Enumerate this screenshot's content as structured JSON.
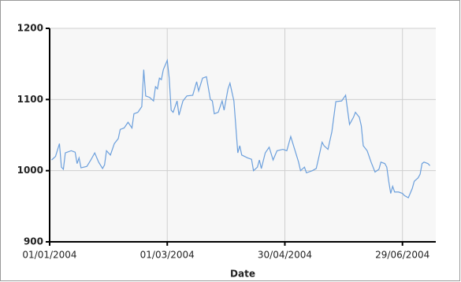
{
  "chart_data": {
    "type": "line",
    "x_label": "Date",
    "x": [
      "2004-01-02",
      "2004-01-04",
      "2004-01-06",
      "2004-01-07",
      "2004-01-08",
      "2004-01-09",
      "2004-01-12",
      "2004-01-14",
      "2004-01-15",
      "2004-01-16",
      "2004-01-17",
      "2004-01-20",
      "2004-01-22",
      "2004-01-24",
      "2004-01-26",
      "2004-01-28",
      "2004-01-29",
      "2004-01-30",
      "2004-02-01",
      "2004-02-03",
      "2004-02-05",
      "2004-02-06",
      "2004-02-08",
      "2004-02-10",
      "2004-02-12",
      "2004-02-13",
      "2004-02-15",
      "2004-02-17",
      "2004-02-18",
      "2004-02-19",
      "2004-02-21",
      "2004-02-23",
      "2004-02-24",
      "2004-02-25",
      "2004-02-26",
      "2004-02-27",
      "2004-02-28",
      "2004-03-01",
      "2004-03-02",
      "2004-03-03",
      "2004-03-04",
      "2004-03-06",
      "2004-03-07",
      "2004-03-09",
      "2004-03-11",
      "2004-03-14",
      "2004-03-16",
      "2004-03-17",
      "2004-03-19",
      "2004-03-21",
      "2004-03-23",
      "2004-03-24",
      "2004-03-25",
      "2004-03-27",
      "2004-03-29",
      "2004-03-30",
      "2004-04-01",
      "2004-04-02",
      "2004-04-04",
      "2004-04-06",
      "2004-04-07",
      "2004-04-08",
      "2004-04-11",
      "2004-04-13",
      "2004-04-14",
      "2004-04-16",
      "2004-04-17",
      "2004-04-18",
      "2004-04-20",
      "2004-04-22",
      "2004-04-24",
      "2004-04-26",
      "2004-04-29",
      "2004-05-01",
      "2004-05-03",
      "2004-05-05",
      "2004-05-07",
      "2004-05-08",
      "2004-05-10",
      "2004-05-11",
      "2004-05-14",
      "2004-05-16",
      "2004-05-17",
      "2004-05-19",
      "2004-05-20",
      "2004-05-22",
      "2004-05-24",
      "2004-05-26",
      "2004-05-29",
      "2004-05-31",
      "2004-06-01",
      "2004-06-02",
      "2004-06-04",
      "2004-06-05",
      "2004-06-07",
      "2004-06-08",
      "2004-06-09",
      "2004-06-11",
      "2004-06-13",
      "2004-06-15",
      "2004-06-17",
      "2004-06-18",
      "2004-06-20",
      "2004-06-21",
      "2004-06-22",
      "2004-06-23",
      "2004-06-24",
      "2004-06-25",
      "2004-06-27",
      "2004-06-29",
      "2004-06-30",
      "2004-07-02",
      "2004-07-04",
      "2004-07-05",
      "2004-07-07",
      "2004-07-08",
      "2004-07-09",
      "2004-07-10",
      "2004-07-12",
      "2004-07-13"
    ],
    "series": [
      {
        "color": "#6b9fdc",
        "values": [
          1015,
          1020,
          1038,
          1005,
          1002,
          1025,
          1028,
          1026,
          1010,
          1018,
          1004,
          1006,
          1015,
          1025,
          1012,
          1003,
          1008,
          1028,
          1022,
          1038,
          1045,
          1058,
          1060,
          1068,
          1060,
          1080,
          1082,
          1090,
          1142,
          1105,
          1103,
          1098,
          1118,
          1115,
          1130,
          1128,
          1142,
          1155,
          1130,
          1085,
          1082,
          1098,
          1078,
          1098,
          1105,
          1106,
          1125,
          1112,
          1130,
          1132,
          1100,
          1098,
          1080,
          1082,
          1098,
          1085,
          1115,
          1123,
          1098,
          1025,
          1035,
          1022,
          1018,
          1016,
          1000,
          1005,
          1015,
          1003,
          1025,
          1033,
          1015,
          1028,
          1030,
          1028,
          1048,
          1030,
          1012,
          1000,
          1005,
          997,
          1000,
          1003,
          1015,
          1040,
          1035,
          1030,
          1055,
          1097,
          1098,
          1106,
          1085,
          1065,
          1075,
          1082,
          1075,
          1063,
          1035,
          1028,
          1012,
          998,
          1002,
          1012,
          1010,
          1005,
          985,
          968,
          978,
          970,
          970,
          968,
          965,
          962,
          975,
          985,
          990,
          995,
          1010,
          1012,
          1010,
          1007
        ]
      }
    ],
    "xlim": [
      "2004-01-01",
      "2004-07-16"
    ],
    "xticks": [
      {
        "value": "2004-01-01",
        "label": "01/01/2004"
      },
      {
        "value": "2004-03-01",
        "label": "01/03/2004"
      },
      {
        "value": "2004-04-30",
        "label": "30/04/2004"
      },
      {
        "value": "2004-06-29",
        "label": "29/06/2004"
      }
    ],
    "ylim": [
      900,
      1200
    ],
    "yticks": [
      900,
      1000,
      1100,
      1200
    ],
    "grid": true
  }
}
